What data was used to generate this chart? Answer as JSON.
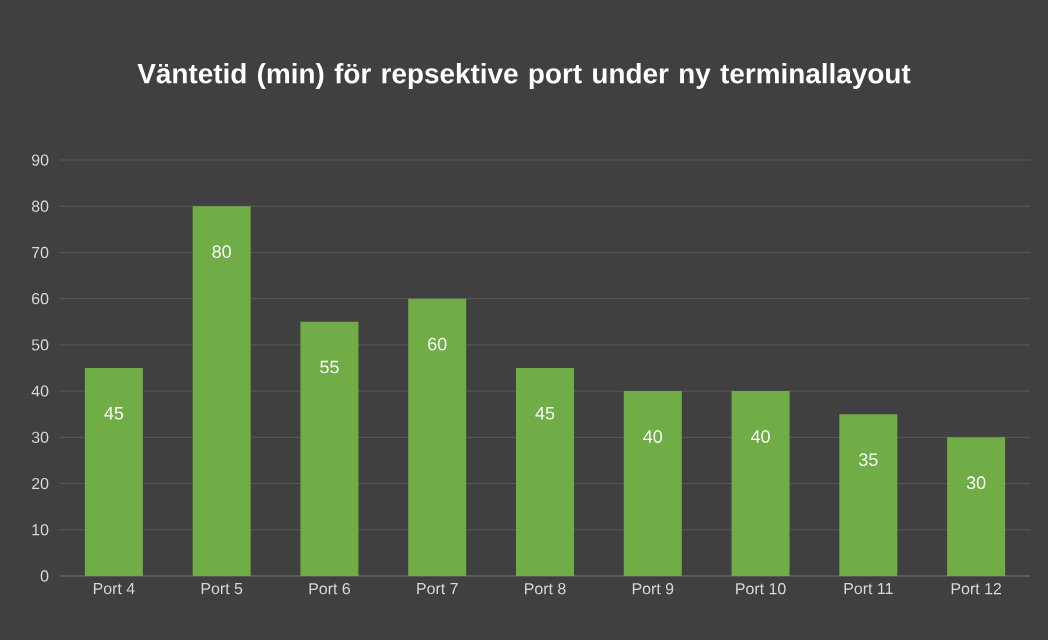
{
  "chart_data": {
    "type": "bar",
    "title": "Väntetid (min) för repsektive port under ny terminallayout",
    "categories": [
      "Port 4",
      "Port 5",
      "Port 6",
      "Port 7",
      "Port 8",
      "Port 9",
      "Port 10",
      "Port 11",
      "Port 12"
    ],
    "values": [
      45,
      80,
      55,
      60,
      45,
      40,
      40,
      35,
      30
    ],
    "color": "#70ad47",
    "ylim": [
      0,
      90
    ],
    "yticks": [
      0,
      10,
      20,
      30,
      40,
      50,
      60,
      70,
      80,
      90
    ],
    "grid": "y",
    "data_labels": true
  }
}
